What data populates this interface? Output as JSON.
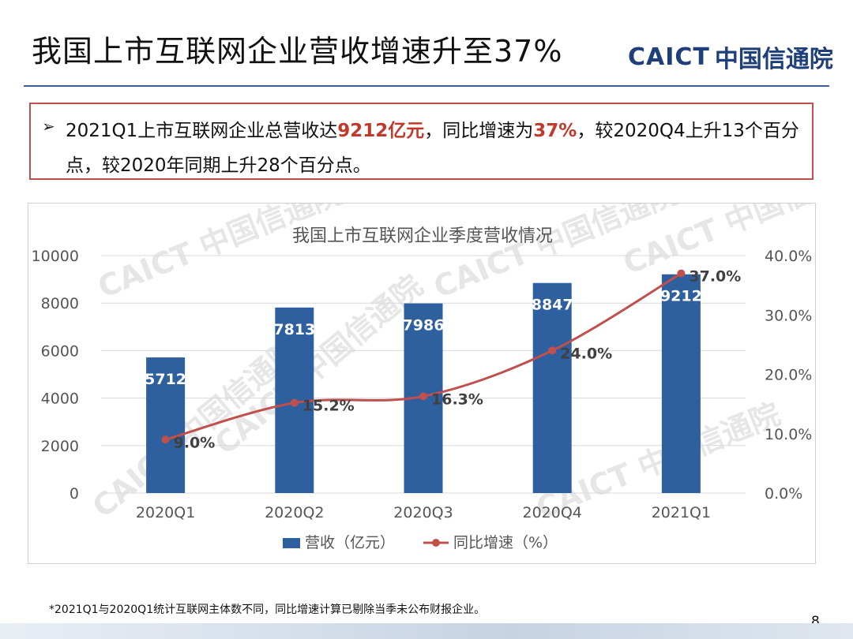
{
  "slide": {
    "title": "我国上市互联网企业营收增速升至37%",
    "logo_text_en": "CAICT",
    "logo_text_cn": "中国信通院",
    "callout": {
      "bullet": "➢",
      "parts": [
        {
          "text": "2021Q1上市互联网企业总营收达",
          "highlight": false
        },
        {
          "text": "9212亿元",
          "highlight": true
        },
        {
          "text": "，同比增速为",
          "highlight": false
        },
        {
          "text": "37%",
          "highlight": true
        },
        {
          "text": "，较2020Q4上升13个百分点，较2020年同期上升28个百分点。",
          "highlight": false
        }
      ]
    },
    "footnote": "*2021Q1与2020Q1统计互联网主体数不同，同比增速计算已剔除当季未公布财报企业。",
    "page_number": "8",
    "watermark": "CAICT 中国信通院"
  },
  "colors": {
    "bar": "#2e5f9e",
    "line": "#c0504d",
    "title_rule": "#3e5f95",
    "callout_border": "#c0504d",
    "highlight": "#c0392b"
  },
  "chart_data": {
    "type": "bar",
    "title": "我国上市互联网企业季度营收情况",
    "categories": [
      "2020Q1",
      "2020Q2",
      "2020Q3",
      "2020Q4",
      "2021Q1"
    ],
    "series": [
      {
        "name": "营收（亿元）",
        "type": "bar",
        "axis": "left",
        "values": [
          5712,
          7813,
          7986,
          8847,
          9212
        ],
        "labels": [
          "5712",
          "7813",
          "7986",
          "8847",
          "9212"
        ]
      },
      {
        "name": "同比增速（%）",
        "type": "line",
        "axis": "right",
        "values": [
          9.0,
          15.2,
          16.3,
          24.0,
          37.0
        ],
        "labels": [
          "9.0%",
          "15.2%",
          "16.3%",
          "24.0%",
          "37.0%"
        ]
      }
    ],
    "ylim_left": [
      0,
      10000
    ],
    "yticks_left": [
      "0",
      "2000",
      "4000",
      "6000",
      "8000",
      "10000"
    ],
    "ylim_right": [
      0,
      40
    ],
    "yticks_right": [
      "0.0%",
      "10.0%",
      "20.0%",
      "30.0%",
      "40.0%"
    ],
    "grid": true,
    "legend_position": "bottom"
  }
}
